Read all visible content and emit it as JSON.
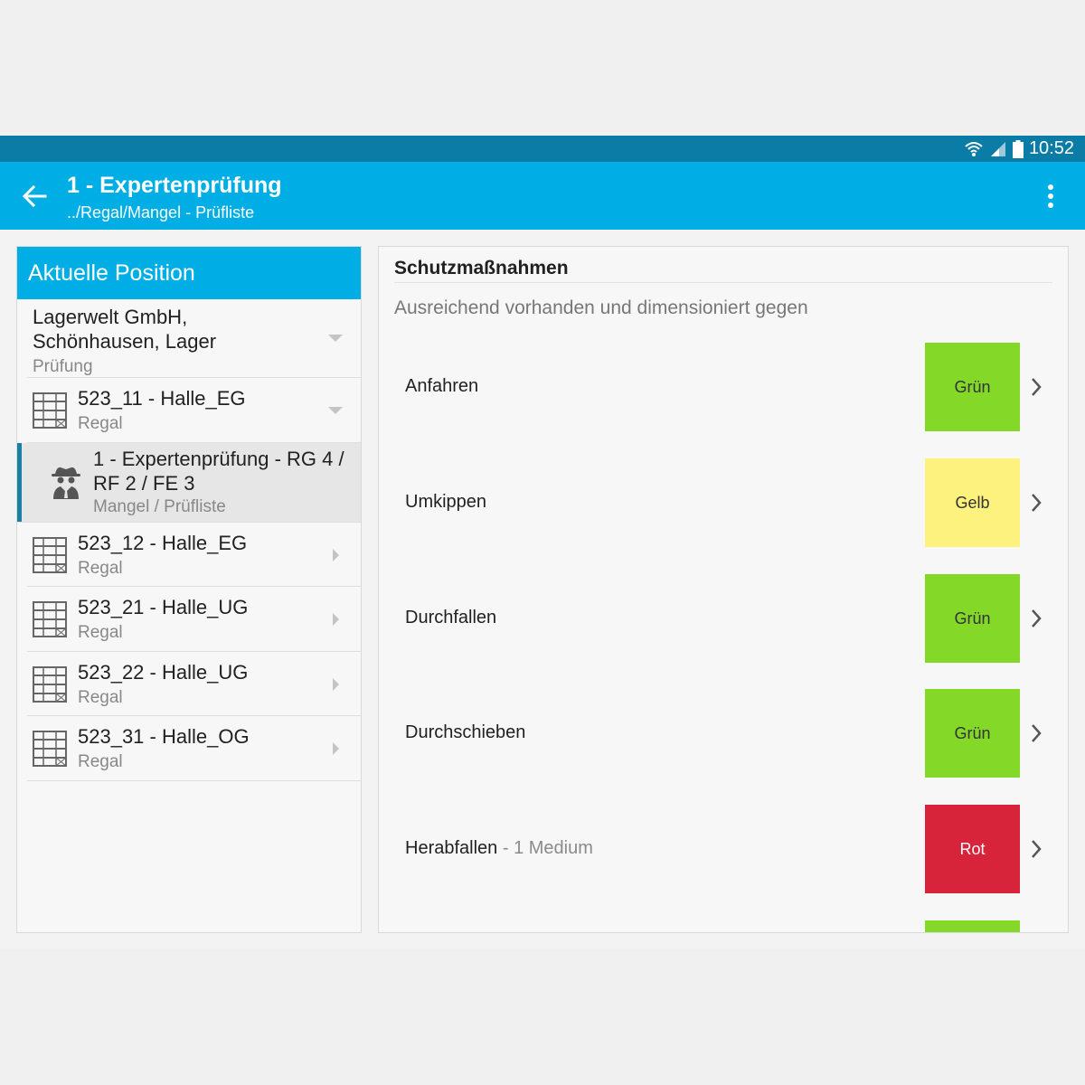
{
  "status_bar": {
    "time": "10:52",
    "icons": [
      "wifi-icon",
      "signal-icon",
      "battery-icon"
    ]
  },
  "app_bar": {
    "title": "1 - Expertenprüfung",
    "subtitle": "../Regal/Mangel - Prüfliste",
    "back_icon": "arrow-left-icon",
    "menu_icon": "more-vert-icon"
  },
  "left_panel": {
    "header": "Aktuelle Position",
    "location": {
      "title": "Lagerwelt GmbH, Schönhausen, Lager",
      "subtitle": "Prüfung"
    },
    "items": [
      {
        "title": "523_11 - Halle_EG",
        "subtitle": "Regal",
        "expanded": true
      },
      {
        "title": "1 - Expertenprüfung - RG 4 / RF 2 / FE 3",
        "subtitle": "Mangel / Prüfliste",
        "active": true
      },
      {
        "title": "523_12 - Halle_EG",
        "subtitle": "Regal"
      },
      {
        "title": "523_21 - Halle_UG",
        "subtitle": "Regal"
      },
      {
        "title": "523_22 - Halle_UG",
        "subtitle": "Regal"
      },
      {
        "title": "523_31 - Halle_OG",
        "subtitle": "Regal"
      }
    ]
  },
  "right_panel": {
    "section_title": "Schutzmaßnahmen",
    "section_subtitle": "Ausreichend vorhanden und dimensioniert gegen",
    "checks": [
      {
        "label": "Anfahren",
        "extra": "",
        "status": "Grün",
        "color": "#84d928"
      },
      {
        "label": "Umkippen",
        "extra": "",
        "status": "Gelb",
        "color": "#fdf27e"
      },
      {
        "label": "Durchfallen",
        "extra": "",
        "status": "Grün",
        "color": "#84d928"
      },
      {
        "label": "Durchschieben",
        "extra": "",
        "status": "Grün",
        "color": "#84d928"
      },
      {
        "label": "Herabfallen",
        "extra": " - 1 Medium",
        "status": "Rot",
        "color": "#d8243a"
      },
      {
        "label": "",
        "extra": "",
        "status": "",
        "color": "#84d928"
      }
    ]
  }
}
